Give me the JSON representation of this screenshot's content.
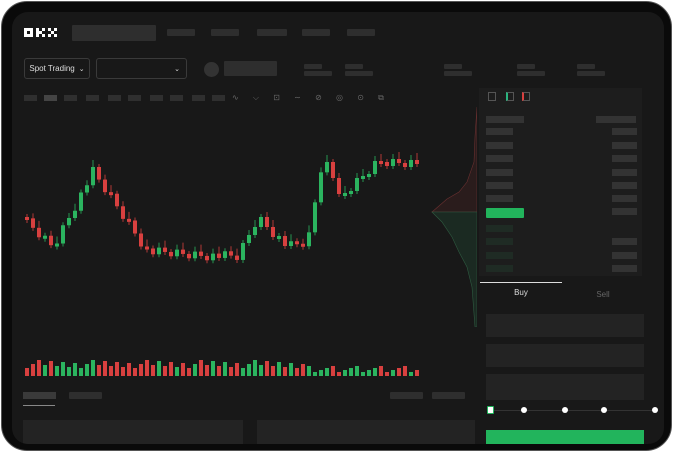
{
  "brand": {
    "logo": "OKX"
  },
  "toolbar": {
    "market_select": "Spot Trading",
    "pair_select": ""
  },
  "order_form": {
    "tabs": [
      {
        "label": "Buy",
        "active": true
      },
      {
        "label": "Sell",
        "active": false
      }
    ],
    "leverage_steps": 5,
    "selected_step": 0
  },
  "colors": {
    "up": "#2bb45f",
    "down": "#d8403f",
    "background": "#181818",
    "accent": "#22b45c"
  }
}
